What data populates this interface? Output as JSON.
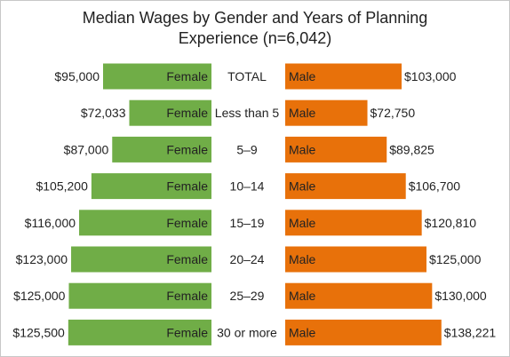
{
  "chart_data": {
    "type": "bar",
    "title_line1": "Median Wages by Gender and Years of Planning",
    "title_line2": "Experience (n=6,042)",
    "categories": [
      "TOTAL",
      "Less than 5",
      "5–9",
      "10–14",
      "15–19",
      "20–24",
      "25–29",
      "30 or more"
    ],
    "series": [
      {
        "name": "Female",
        "color": "#70ad47",
        "values": [
          95000,
          72033,
          87000,
          105200,
          116000,
          123000,
          125000,
          125500
        ],
        "value_labels": [
          "$95,000",
          "$72,033",
          "$87,000",
          "$105,200",
          "$116,000",
          "$123,000",
          "$125,000",
          "$125,500"
        ]
      },
      {
        "name": "Male",
        "color": "#e8710a",
        "values": [
          103000,
          72750,
          89825,
          106700,
          120810,
          125000,
          130000,
          138221
        ],
        "value_labels": [
          "$103,000",
          "$72,750",
          "$89,825",
          "$106,700",
          "$120,810",
          "$125,000",
          "$130,000",
          "$138,221"
        ]
      }
    ],
    "layout": "back-to-back horizontal bars, female left, male right, category labels centered",
    "grid": false
  }
}
